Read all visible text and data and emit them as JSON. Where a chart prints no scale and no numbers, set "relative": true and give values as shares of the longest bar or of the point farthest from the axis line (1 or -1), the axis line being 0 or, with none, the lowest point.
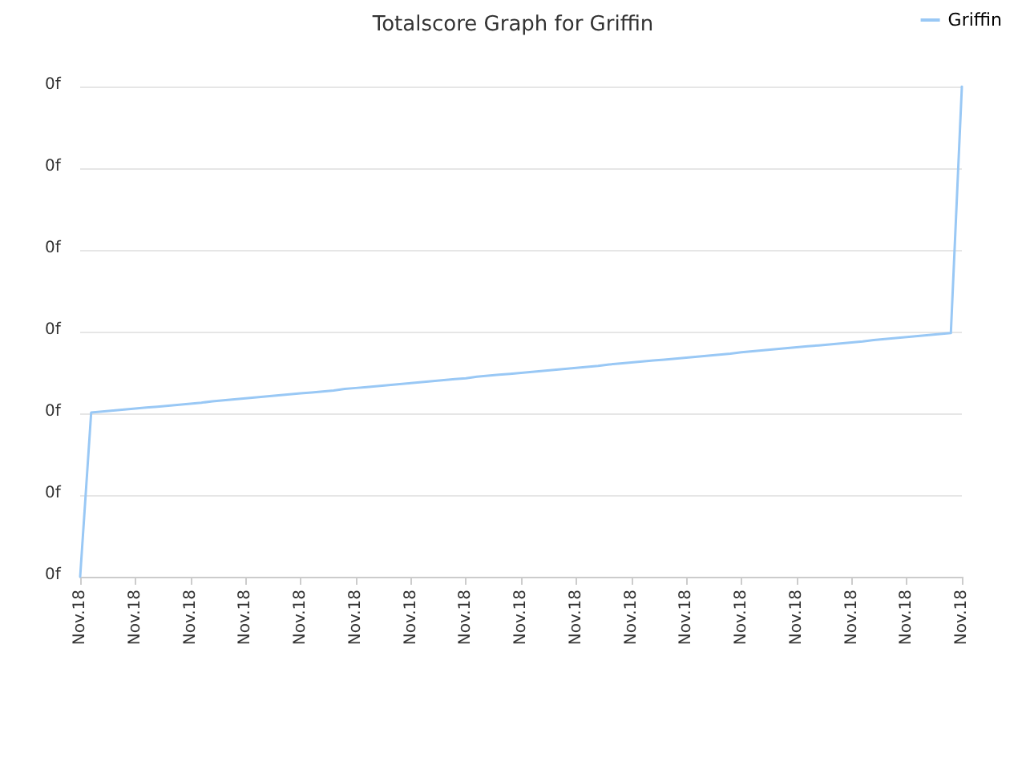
{
  "chart_data": {
    "type": "line",
    "title": "Totalscore Graph for Griffin",
    "relative": true,
    "categories": [
      "Nov.18",
      null,
      null,
      null,
      null,
      "Nov.18",
      null,
      null,
      null,
      null,
      "Nov.18",
      null,
      null,
      null,
      null,
      "Nov.18",
      null,
      null,
      null,
      null,
      "Nov.18",
      null,
      null,
      null,
      null,
      "Nov.18",
      null,
      null,
      null,
      null,
      "Nov.18",
      null,
      null,
      null,
      null,
      "Nov.18",
      null,
      null,
      null,
      null,
      "Nov.18",
      null,
      null,
      null,
      null,
      "Nov.18",
      null,
      null,
      null,
      null,
      "Nov.18",
      null,
      null,
      null,
      null,
      "Nov.18",
      null,
      null,
      null,
      null,
      "Nov.18",
      null,
      null,
      null,
      null,
      "Nov.18",
      null,
      null,
      null,
      null,
      "Nov.18",
      null,
      null,
      null,
      null,
      "Nov.18",
      null,
      null,
      null,
      null,
      "Nov.18"
    ],
    "series": [
      {
        "name": "Griffin",
        "color": "#99c8f5",
        "values": [
          0,
          0.335,
          0.337,
          0.339,
          0.341,
          0.343,
          0.345,
          0.347,
          0.349,
          0.351,
          0.353,
          0.355,
          0.358,
          0.36,
          0.362,
          0.364,
          0.366,
          0.368,
          0.37,
          0.372,
          0.374,
          0.376,
          0.378,
          0.38,
          0.383,
          0.385,
          0.387,
          0.389,
          0.391,
          0.393,
          0.395,
          0.397,
          0.399,
          0.401,
          0.403,
          0.405,
          0.408,
          0.41,
          0.412,
          0.414,
          0.416,
          0.418,
          0.42,
          0.422,
          0.424,
          0.426,
          0.428,
          0.43,
          0.433,
          0.435,
          0.437,
          0.439,
          0.441,
          0.443,
          0.445,
          0.447,
          0.449,
          0.451,
          0.453,
          0.455,
          0.458,
          0.46,
          0.462,
          0.464,
          0.466,
          0.468,
          0.47,
          0.472,
          0.474,
          0.476,
          0.478,
          0.48,
          0.483,
          0.485,
          0.487,
          0.489,
          0.491,
          0.493,
          0.495,
          0.497,
          1
        ]
      }
    ],
    "annotations": [
      "0f",
      "0f",
      "0f",
      "0f",
      "0f",
      "0f",
      "0f"
    ],
    "grid": "y",
    "legend": "top right",
    "marker": "none",
    "line_style": "solid"
  }
}
